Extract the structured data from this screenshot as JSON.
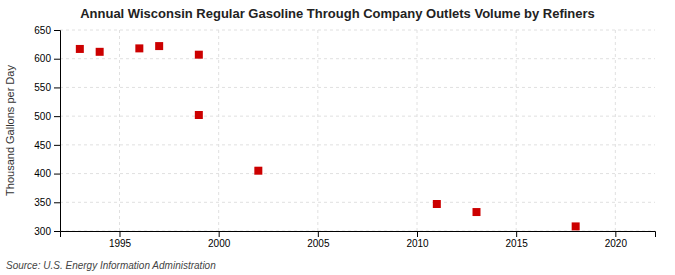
{
  "chart_data": {
    "type": "scatter",
    "title": "Annual Wisconsin Regular Gasoline Through Company Outlets Volume by Refiners",
    "ylabel": "Thousand Gallons per Day",
    "annotation": "Source: U.S. Energy Information Administration",
    "x": [
      1993,
      1994,
      1996,
      1997,
      1999,
      1999,
      2002,
      2011,
      2013,
      2018
    ],
    "values": [
      617,
      612,
      618,
      622,
      607,
      502,
      405,
      347,
      333,
      308
    ],
    "color": "#cc0000",
    "marker": "square",
    "xlim": [
      1992,
      2022
    ],
    "ylim": [
      300,
      650
    ],
    "xticks": [
      1995,
      2000,
      2005,
      2010,
      2015,
      2020
    ],
    "yticks": [
      300,
      350,
      400,
      450,
      500,
      550,
      600,
      650
    ],
    "grid": true
  }
}
